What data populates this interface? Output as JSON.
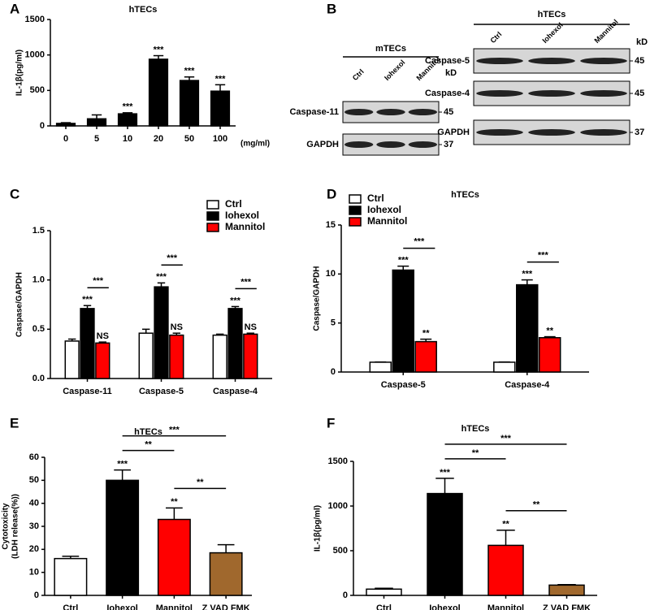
{
  "panel_label": "B",
  "blots": {
    "groups": [
      {
        "title": "mTECs",
        "unit": "kD",
        "lanes": [
          "Ctrl",
          "Iohexol",
          "Mannitol"
        ],
        "rows": [
          {
            "name": "Caspase-11",
            "kd": 45
          },
          {
            "name": "GAPDH",
            "kd": 37
          }
        ]
      },
      {
        "title": "hTECs",
        "unit": "kD",
        "lanes": [
          "Ctrl",
          "Iohexol",
          "Mannitol"
        ],
        "rows": [
          {
            "name": "Caspase-5",
            "kd": 45
          },
          {
            "name": "Caspase-4",
            "kd": 45
          },
          {
            "name": "GAPDH",
            "kd": 37
          }
        ]
      }
    ]
  },
  "chart_data": [
    {
      "panel": "A",
      "type": "bar",
      "title": "hTECs",
      "ylabel": [
        "IL-1β(pg/ml)"
      ],
      "xunit": "(mg/ml)",
      "categories": [
        "0",
        "5",
        "10",
        "20",
        "50",
        "100"
      ],
      "values": [
        35,
        100,
        170,
        940,
        640,
        490
      ],
      "errors": [
        10,
        55,
        15,
        50,
        50,
        90
      ],
      "annotations": [
        null,
        null,
        "***",
        "***",
        "***",
        "***"
      ],
      "color": "#000000",
      "ylim": [
        0,
        1500
      ],
      "yticks": [
        0,
        500,
        1000,
        1500
      ]
    },
    {
      "panel": "C",
      "type": "bar",
      "ylabel": [
        "Caspase/GAPDH"
      ],
      "categories": [
        "Caspase-11",
        "Caspase-5",
        "Caspase-4"
      ],
      "legend": "upper right",
      "series": [
        {
          "name": "Ctrl",
          "color": "#ffffff",
          "values": [
            0.38,
            0.46,
            0.44
          ],
          "errors": [
            0.02,
            0.04,
            0.01
          ]
        },
        {
          "name": "Iohexol",
          "color": "#000000",
          "values": [
            0.71,
            0.93,
            0.71
          ],
          "errors": [
            0.03,
            0.04,
            0.02
          ],
          "annotations": [
            "***",
            "***",
            "***"
          ]
        },
        {
          "name": "Mannitol",
          "color": "#ff0000",
          "values": [
            0.36,
            0.44,
            0.45
          ],
          "errors": [
            0.01,
            0.02,
            0.01
          ],
          "annotations": [
            "NS",
            "NS",
            "NS"
          ]
        }
      ],
      "bracket_labels": [
        "***",
        "***",
        "***"
      ],
      "ylim": [
        0,
        1.5
      ],
      "yticks": [
        {
          "value": 0,
          "label": "0.0"
        },
        0.5,
        {
          "value": 1,
          "label": "1.0"
        },
        1.5
      ]
    },
    {
      "panel": "D",
      "type": "bar",
      "title": "hTECs",
      "ylabel": [
        "Caspase/GAPDH"
      ],
      "categories": [
        "Caspase-5",
        "Caspase-4"
      ],
      "legend": "upper left",
      "series": [
        {
          "name": "Ctrl",
          "color": "#ffffff",
          "values": [
            1,
            1
          ],
          "errors": [
            0.02,
            0.02
          ]
        },
        {
          "name": "Iohexol",
          "color": "#000000",
          "values": [
            10.4,
            8.9
          ],
          "errors": [
            0.4,
            0.5
          ],
          "annotations": [
            "***",
            "***"
          ]
        },
        {
          "name": "Mannitol",
          "color": "#ff0000",
          "values": [
            3.1,
            3.5
          ],
          "errors": [
            0.25,
            0.1
          ],
          "annotations": [
            "**",
            "**"
          ]
        }
      ],
      "bracket_labels": [
        "***",
        "***"
      ],
      "ylim": [
        0,
        15
      ],
      "yticks": [
        0,
        5,
        10,
        15
      ]
    },
    {
      "panel": "E",
      "type": "bar",
      "title": "hTECs",
      "ylabel": [
        "Cytotoxicity",
        "(LDH release(%))"
      ],
      "categories": [
        "Ctrl",
        "Iohexol",
        "Mannitol",
        "Z VAD FMK"
      ],
      "values": [
        16,
        50,
        33,
        18.5
      ],
      "errors": [
        1,
        4.5,
        5,
        3.5
      ],
      "annotations": [
        null,
        "***",
        "**",
        null
      ],
      "colors": [
        "#ffffff",
        "#000000",
        "#ff0000",
        "#a0682d"
      ],
      "brackets": [
        {
          "from": 2,
          "to": 3,
          "label": "**"
        },
        {
          "from": 1,
          "to": 2,
          "label": "**"
        },
        {
          "from": 1,
          "to": 3,
          "label": "***"
        }
      ],
      "ylim": [
        0,
        60
      ],
      "yticks": [
        0,
        10,
        20,
        30,
        40,
        50,
        60
      ]
    },
    {
      "panel": "F",
      "type": "bar",
      "title": "hTECs",
      "ylabel": [
        "IL-1β(pg/ml)"
      ],
      "categories": [
        "Ctrl",
        "Iohexol",
        "Mannitol",
        "Z VAD FMK"
      ],
      "values": [
        70,
        1140,
        560,
        115
      ],
      "errors": [
        10,
        170,
        170,
        5
      ],
      "annotations": [
        null,
        "***",
        "**",
        null
      ],
      "colors": [
        "#ffffff",
        "#000000",
        "#ff0000",
        "#a0682d"
      ],
      "brackets": [
        {
          "from": 2,
          "to": 3,
          "label": "**"
        },
        {
          "from": 1,
          "to": 2,
          "label": "**"
        },
        {
          "from": 1,
          "to": 3,
          "label": "***"
        }
      ],
      "ylim": [
        0,
        1500
      ],
      "yticks": [
        0,
        500,
        1000,
        1500
      ]
    }
  ]
}
